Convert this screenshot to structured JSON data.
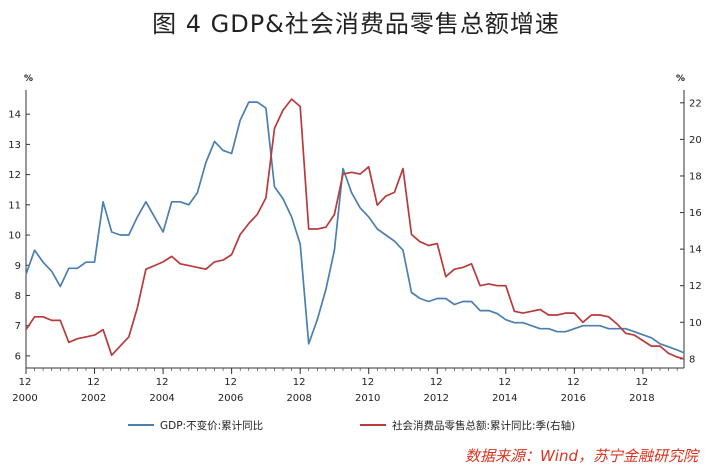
{
  "title": "图 4 GDP&社会消费品零售总额增速",
  "source_note": "数据来源：Wind，苏宁金融研究院",
  "colors": {
    "gdp": "#4a7fb0",
    "retail": "#b83a3a",
    "axis": "#333333",
    "source": "#d9331f"
  },
  "chart_data": {
    "type": "line",
    "y_left": {
      "unit": "%",
      "ylim": [
        5.6,
        14.8
      ],
      "ticks": [
        6,
        7,
        8,
        9,
        10,
        11,
        12,
        13,
        14
      ]
    },
    "y_right": {
      "unit": "%",
      "ylim": [
        7.5,
        22.7
      ],
      "ticks": [
        8,
        10,
        12,
        14,
        16,
        18,
        20,
        22
      ]
    },
    "x_axis": {
      "range": [
        2000.0,
        2019.2
      ],
      "ticks": [
        {
          "x": 2000,
          "top": "12",
          "bottom": "2000"
        },
        {
          "x": 2002,
          "top": "12",
          "bottom": "2002"
        },
        {
          "x": 2004,
          "top": "12",
          "bottom": "2004"
        },
        {
          "x": 2006,
          "top": "12",
          "bottom": "2006"
        },
        {
          "x": 2008,
          "top": "12",
          "bottom": "2008"
        },
        {
          "x": 2010,
          "top": "12",
          "bottom": "2010"
        },
        {
          "x": 2012,
          "top": "12",
          "bottom": "2012"
        },
        {
          "x": 2014,
          "top": "12",
          "bottom": "2014"
        },
        {
          "x": 2016,
          "top": "12",
          "bottom": "2016"
        },
        {
          "x": 2018,
          "top": "12",
          "bottom": "2018"
        }
      ]
    },
    "grid": false,
    "legend_position": "bottom",
    "series": [
      {
        "name": "GDP:不变价:累计同比",
        "axis": "left",
        "color": "#4a7fb0",
        "points": [
          [
            2000.0,
            8.7
          ],
          [
            2000.25,
            9.5
          ],
          [
            2000.5,
            9.1
          ],
          [
            2000.75,
            8.8
          ],
          [
            2001.0,
            8.3
          ],
          [
            2001.25,
            8.9
          ],
          [
            2001.5,
            8.9
          ],
          [
            2001.75,
            9.1
          ],
          [
            2002.0,
            9.1
          ],
          [
            2002.25,
            11.1
          ],
          [
            2002.5,
            10.1
          ],
          [
            2002.75,
            10.0
          ],
          [
            2003.0,
            10.0
          ],
          [
            2003.25,
            10.6
          ],
          [
            2003.5,
            11.1
          ],
          [
            2003.75,
            10.6
          ],
          [
            2004.0,
            10.1
          ],
          [
            2004.25,
            11.1
          ],
          [
            2004.5,
            11.1
          ],
          [
            2004.75,
            11.0
          ],
          [
            2005.0,
            11.4
          ],
          [
            2005.25,
            12.4
          ],
          [
            2005.5,
            13.1
          ],
          [
            2005.75,
            12.8
          ],
          [
            2006.0,
            12.7
          ],
          [
            2006.25,
            13.8
          ],
          [
            2006.5,
            14.4
          ],
          [
            2006.75,
            14.4
          ],
          [
            2007.0,
            14.2
          ],
          [
            2007.25,
            11.6
          ],
          [
            2007.5,
            11.2
          ],
          [
            2007.75,
            10.6
          ],
          [
            2008.0,
            9.7
          ],
          [
            2008.25,
            6.4
          ],
          [
            2008.5,
            7.2
          ],
          [
            2008.75,
            8.2
          ],
          [
            2009.0,
            9.5
          ],
          [
            2009.25,
            12.2
          ],
          [
            2009.5,
            11.4
          ],
          [
            2009.75,
            10.9
          ],
          [
            2010.0,
            10.6
          ],
          [
            2010.25,
            10.2
          ],
          [
            2010.5,
            10.0
          ],
          [
            2010.75,
            9.8
          ],
          [
            2011.0,
            9.5
          ],
          [
            2011.25,
            8.1
          ],
          [
            2011.5,
            7.9
          ],
          [
            2011.75,
            7.8
          ],
          [
            2012.0,
            7.9
          ],
          [
            2012.25,
            7.9
          ],
          [
            2012.5,
            7.7
          ],
          [
            2012.75,
            7.8
          ],
          [
            2013.0,
            7.8
          ],
          [
            2013.25,
            7.5
          ],
          [
            2013.5,
            7.5
          ],
          [
            2013.75,
            7.4
          ],
          [
            2014.0,
            7.2
          ],
          [
            2014.25,
            7.1
          ],
          [
            2014.5,
            7.1
          ],
          [
            2014.75,
            7.0
          ],
          [
            2015.0,
            6.9
          ],
          [
            2015.25,
            6.9
          ],
          [
            2015.5,
            6.8
          ],
          [
            2015.75,
            6.8
          ],
          [
            2016.0,
            6.9
          ],
          [
            2016.25,
            7.0
          ],
          [
            2016.5,
            7.0
          ],
          [
            2016.75,
            7.0
          ],
          [
            2017.0,
            6.9
          ],
          [
            2017.25,
            6.9
          ],
          [
            2017.5,
            6.9
          ],
          [
            2017.75,
            6.8
          ],
          [
            2018.0,
            6.7
          ],
          [
            2018.25,
            6.6
          ],
          [
            2018.5,
            6.4
          ],
          [
            2018.75,
            6.3
          ],
          [
            2019.0,
            6.2
          ],
          [
            2019.2,
            6.1
          ]
        ]
      },
      {
        "name": "社会消费品零售总额:累计同比:季(右轴)",
        "axis": "right",
        "color": "#b83a3a",
        "points": [
          [
            2000.0,
            9.6
          ],
          [
            2000.25,
            10.3
          ],
          [
            2000.5,
            10.3
          ],
          [
            2000.75,
            10.1
          ],
          [
            2001.0,
            10.1
          ],
          [
            2001.25,
            8.9
          ],
          [
            2001.5,
            9.1
          ],
          [
            2001.75,
            9.2
          ],
          [
            2002.0,
            9.3
          ],
          [
            2002.25,
            9.6
          ],
          [
            2002.5,
            8.2
          ],
          [
            2002.75,
            8.7
          ],
          [
            2003.0,
            9.2
          ],
          [
            2003.25,
            10.8
          ],
          [
            2003.5,
            12.9
          ],
          [
            2003.75,
            13.1
          ],
          [
            2004.0,
            13.3
          ],
          [
            2004.25,
            13.6
          ],
          [
            2004.5,
            13.2
          ],
          [
            2004.75,
            13.1
          ],
          [
            2005.0,
            13.0
          ],
          [
            2005.25,
            12.9
          ],
          [
            2005.5,
            13.3
          ],
          [
            2005.75,
            13.4
          ],
          [
            2006.0,
            13.7
          ],
          [
            2006.25,
            14.8
          ],
          [
            2006.5,
            15.4
          ],
          [
            2006.75,
            15.9
          ],
          [
            2007.0,
            16.8
          ],
          [
            2007.25,
            20.6
          ],
          [
            2007.5,
            21.6
          ],
          [
            2007.75,
            22.2
          ],
          [
            2008.0,
            21.8
          ],
          [
            2008.25,
            15.1
          ],
          [
            2008.5,
            15.1
          ],
          [
            2008.75,
            15.2
          ],
          [
            2009.0,
            15.9
          ],
          [
            2009.25,
            18.1
          ],
          [
            2009.5,
            18.2
          ],
          [
            2009.75,
            18.1
          ],
          [
            2010.0,
            18.5
          ],
          [
            2010.25,
            16.4
          ],
          [
            2010.5,
            16.9
          ],
          [
            2010.75,
            17.1
          ],
          [
            2011.0,
            18.4
          ],
          [
            2011.25,
            14.8
          ],
          [
            2011.5,
            14.4
          ],
          [
            2011.75,
            14.2
          ],
          [
            2012.0,
            14.3
          ],
          [
            2012.25,
            12.5
          ],
          [
            2012.5,
            12.9
          ],
          [
            2012.75,
            13.0
          ],
          [
            2013.0,
            13.2
          ],
          [
            2013.25,
            12.0
          ],
          [
            2013.5,
            12.1
          ],
          [
            2013.75,
            12.0
          ],
          [
            2014.0,
            12.0
          ],
          [
            2014.25,
            10.6
          ],
          [
            2014.5,
            10.5
          ],
          [
            2014.75,
            10.6
          ],
          [
            2015.0,
            10.7
          ],
          [
            2015.25,
            10.4
          ],
          [
            2015.5,
            10.4
          ],
          [
            2015.75,
            10.5
          ],
          [
            2016.0,
            10.5
          ],
          [
            2016.25,
            10.0
          ],
          [
            2016.5,
            10.4
          ],
          [
            2016.75,
            10.4
          ],
          [
            2017.0,
            10.3
          ],
          [
            2017.25,
            9.9
          ],
          [
            2017.5,
            9.4
          ],
          [
            2017.75,
            9.3
          ],
          [
            2018.0,
            9.0
          ],
          [
            2018.25,
            8.7
          ],
          [
            2018.5,
            8.7
          ],
          [
            2018.75,
            8.3
          ],
          [
            2019.0,
            8.1
          ],
          [
            2019.2,
            8.0
          ]
        ]
      }
    ]
  }
}
